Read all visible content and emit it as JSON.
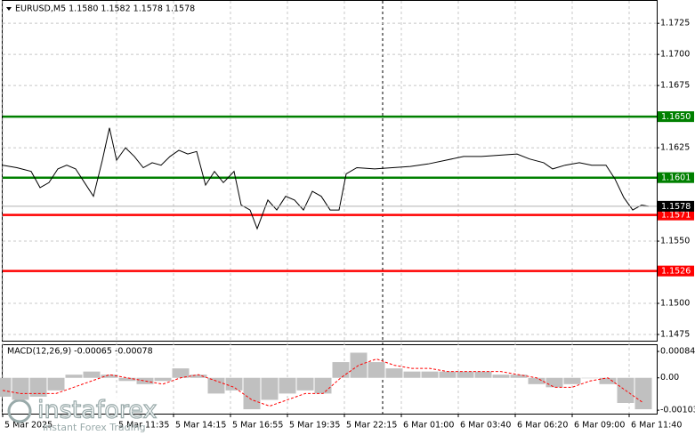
{
  "chart_data": [
    {
      "type": "line",
      "title": "EURUSD,M5  1.1580 1.1582 1.1578 1.1578",
      "xlim": [
        0,
        367.5
      ],
      "ylim": [
        1.147,
        1.1743
      ],
      "xticks": [
        {
          "value": 0,
          "label": "5 Mar 2025"
        },
        {
          "value": 64,
          "label": "5 Mar 11:35"
        },
        {
          "value": 96,
          "label": "5 Mar 14:15"
        },
        {
          "value": 128,
          "label": "5 Mar 16:55"
        },
        {
          "value": 160,
          "label": "5 Mar 19:35"
        },
        {
          "value": 192,
          "label": "5 Mar 22:15"
        },
        {
          "value": 224,
          "label": "6 Mar 01:00"
        },
        {
          "value": 256,
          "label": "6 Mar 03:40"
        },
        {
          "value": 288,
          "label": "6 Mar 06:20"
        },
        {
          "value": 320,
          "label": "6 Mar 09:00"
        },
        {
          "value": 352,
          "label": "6 Mar 11:40"
        }
      ],
      "yticks": [
        1.1725,
        {
          "value": 1.17,
          "label": "1.1700"
        },
        1.1675,
        1.1625,
        {
          "value": 1.155,
          "label": "1.1550"
        },
        {
          "value": 1.15,
          "label": "1.1500"
        },
        1.1475
      ],
      "grid": true,
      "series": [
        {
          "color": "#000000",
          "x": [
            0,
            8,
            16,
            21,
            26,
            31,
            36,
            41,
            46,
            51,
            56,
            60,
            64,
            69,
            74,
            79,
            84,
            89,
            94,
            99,
            104,
            109,
            114,
            119,
            124,
            130,
            134,
            139,
            143,
            149,
            154,
            159,
            164,
            169,
            174,
            179,
            184,
            189,
            193,
            199,
            209,
            219,
            229,
            239,
            249,
            259,
            269,
            279,
            289,
            296,
            304,
            309,
            316,
            324,
            331,
            339,
            344,
            349,
            354,
            359,
            363
          ],
          "values": [
            1.1611,
            1.1609,
            1.1606,
            1.1593,
            1.1597,
            1.1608,
            1.1611,
            1.1608,
            1.1597,
            1.1586,
            1.1615,
            1.1641,
            1.1615,
            1.1625,
            1.1618,
            1.1609,
            1.1613,
            1.1611,
            1.1618,
            1.1623,
            1.162,
            1.1622,
            1.1595,
            1.1606,
            1.1597,
            1.1606,
            1.1579,
            1.1575,
            1.156,
            1.1583,
            1.1575,
            1.1586,
            1.1583,
            1.1575,
            1.159,
            1.1586,
            1.1575,
            1.1575,
            1.1604,
            1.1609,
            1.1608,
            1.1609,
            1.161,
            1.1612,
            1.1615,
            1.1618,
            1.1618,
            1.1619,
            1.162,
            1.1616,
            1.1613,
            1.1608,
            1.1611,
            1.1613,
            1.1611,
            1.1611,
            1.16,
            1.1585,
            1.1575,
            1.1579,
            1.1578
          ]
        }
      ],
      "levels": [
        {
          "value": 1.165,
          "label": "1.1650",
          "color": "#008000"
        },
        {
          "value": 1.1601,
          "color": "#008000"
        },
        {
          "value": 1.1571,
          "color": "#ff0000"
        },
        {
          "value": 1.1526,
          "color": "#ff0000"
        }
      ],
      "last_price": 1.1578,
      "annotations": [
        "instaforex",
        "Instant Forex Trading"
      ]
    },
    {
      "type": "bar",
      "title": "MACD(12,26,9) -0.00065 -0.00078",
      "xlim": [
        0,
        367.5
      ],
      "ylim": [
        -0.00114,
        0.00104
      ],
      "yticks": [
        0.00084,
        {
          "value": 0,
          "label": "0.00"
        },
        -0.00103
      ],
      "x": [
        0,
        10,
        20,
        30,
        40,
        50,
        60,
        70,
        80,
        90,
        100,
        110,
        120,
        130,
        140,
        150,
        160,
        170,
        180,
        190,
        200,
        210,
        220,
        230,
        240,
        250,
        260,
        270,
        280,
        290,
        300,
        310,
        320,
        330,
        340,
        350,
        360
      ],
      "series": [
        {
          "color": "#c0c0c0",
          "values": [
            -0.0006,
            -0.0007,
            -0.0006,
            -0.0004,
            0.0001,
            0.0002,
            0.0001,
            -0.0001,
            -0.0002,
            -0.0001,
            0.0003,
            0.0001,
            -0.0005,
            -0.0004,
            -0.001,
            -0.0007,
            -0.0005,
            -0.0004,
            -0.0005,
            0.0005,
            0.0008,
            0.0005,
            0.0003,
            0.0002,
            0.0002,
            0.0002,
            0.0002,
            0.0002,
            0.0001,
            0.0001,
            -0.0002,
            -0.0003,
            -0.0002,
            0,
            -0.0002,
            -0.0008,
            -0.001
          ]
        },
        {
          "color": "#ff0000",
          "type": "line",
          "values": [
            -0.0004,
            -0.0005,
            -0.0005,
            -0.0005,
            -0.0003,
            -0.0001,
            0.0001,
            0,
            -0.0001,
            -0.0002,
            0,
            0.0001,
            -0.0001,
            -0.0003,
            -0.0007,
            -0.0009,
            -0.0007,
            -0.0005,
            -0.0005,
            0,
            0.0004,
            0.0006,
            0.0004,
            0.0003,
            0.0003,
            0.0002,
            0.0002,
            0.0002,
            0.0002,
            0.0001,
            0,
            -0.0003,
            -0.0003,
            -0.0001,
            0,
            -0.0004,
            -0.0008
          ]
        }
      ]
    }
  ]
}
